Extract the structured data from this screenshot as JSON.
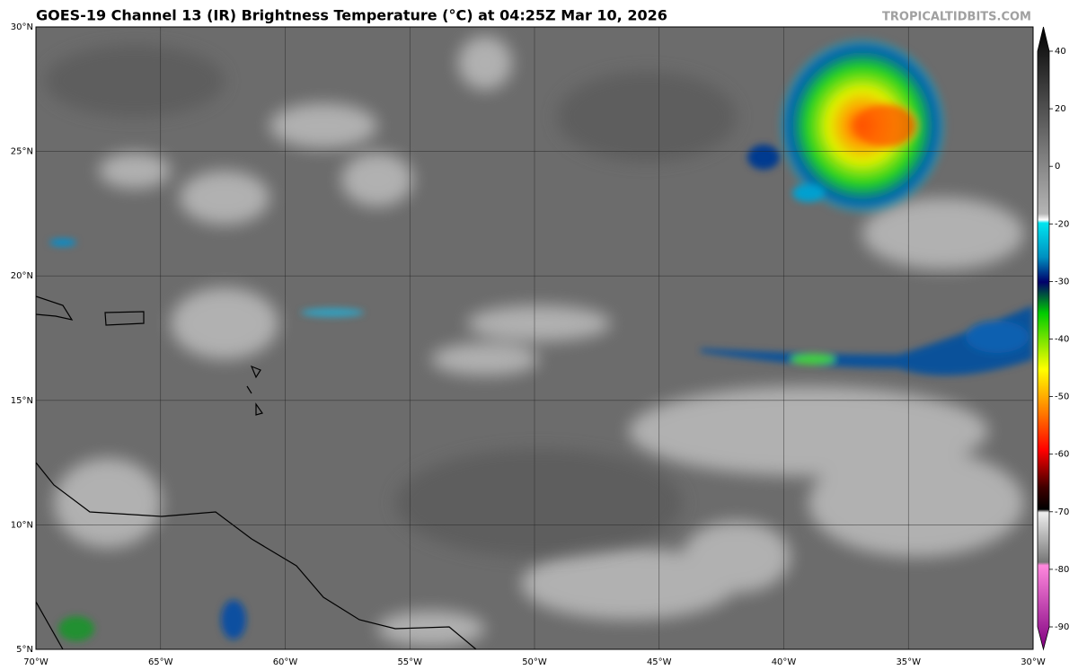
{
  "header": {
    "title": "GOES-19 Channel 13 (IR) Brightness Temperature (°C) at 04:25Z Mar 10, 2026",
    "watermark": "TROPICALTIDBITS.COM"
  },
  "map": {
    "lat_labels": [
      "30°N",
      "25°N",
      "20°N",
      "15°N",
      "10°N",
      "5°N"
    ],
    "lon_labels": [
      "70°W",
      "65°W",
      "60°W",
      "55°W",
      "50°W",
      "45°W",
      "40°W",
      "35°W",
      "30°W"
    ]
  },
  "colorbar": {
    "ticks": [
      40,
      20,
      0,
      -20,
      -30,
      -40,
      -50,
      -60,
      -70,
      -80,
      -90
    ]
  }
}
